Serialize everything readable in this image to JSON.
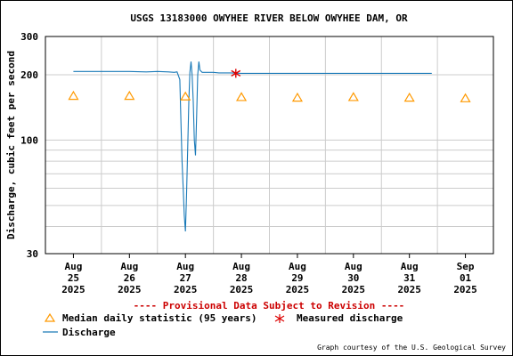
{
  "chart_data": {
    "type": "line",
    "title": "USGS 13183000 OWYHEE RIVER BELOW OWYHEE DAM, OR",
    "ylabel": "Discharge, cubic feet per second",
    "xlabel": "",
    "y_scale": "log",
    "ylim": [
      30,
      300
    ],
    "y_tick_labels": [
      "300",
      "200",
      "100",
      "30"
    ],
    "y_ticks": [
      300,
      200,
      100,
      30
    ],
    "x_tick_labels": [
      {
        "month": "Aug",
        "day": "25",
        "year": "2025"
      },
      {
        "month": "Aug",
        "day": "26",
        "year": "2025"
      },
      {
        "month": "Aug",
        "day": "27",
        "year": "2025"
      },
      {
        "month": "Aug",
        "day": "28",
        "year": "2025"
      },
      {
        "month": "Aug",
        "day": "29",
        "year": "2025"
      },
      {
        "month": "Aug",
        "day": "30",
        "year": "2025"
      },
      {
        "month": "Aug",
        "day": "31",
        "year": "2025"
      },
      {
        "month": "Sep",
        "day": "01",
        "year": "2025"
      }
    ],
    "series": [
      {
        "name": "Discharge",
        "color": "#1a7ab8",
        "points": [
          [
            0.0,
            207
          ],
          [
            1.0,
            207
          ],
          [
            1.3,
            206
          ],
          [
            1.5,
            207
          ],
          [
            1.7,
            206
          ],
          [
            1.8,
            205
          ],
          [
            1.85,
            206
          ],
          [
            1.9,
            190
          ],
          [
            1.92,
            120
          ],
          [
            1.94,
            80
          ],
          [
            1.96,
            60
          ],
          [
            1.98,
            45
          ],
          [
            2.0,
            38
          ],
          [
            2.02,
            55
          ],
          [
            2.04,
            90
          ],
          [
            2.06,
            150
          ],
          [
            2.08,
            205
          ],
          [
            2.1,
            230
          ],
          [
            2.12,
            200
          ],
          [
            2.14,
            150
          ],
          [
            2.16,
            100
          ],
          [
            2.18,
            85
          ],
          [
            2.2,
            130
          ],
          [
            2.22,
            200
          ],
          [
            2.24,
            230
          ],
          [
            2.26,
            210
          ],
          [
            2.3,
            205
          ],
          [
            2.5,
            205
          ],
          [
            2.6,
            204
          ],
          [
            2.8,
            204
          ],
          [
            3.0,
            203
          ],
          [
            3.2,
            203
          ],
          [
            4.0,
            203
          ],
          [
            5.0,
            203
          ],
          [
            6.0,
            203
          ],
          [
            6.4,
            203
          ]
        ]
      },
      {
        "name": "Median daily statistic (95 years)",
        "color": "#ff9900",
        "marker": "triangle",
        "points": [
          [
            0.0,
            160
          ],
          [
            1.0,
            160
          ],
          [
            2.0,
            159
          ],
          [
            3.0,
            158
          ],
          [
            4.0,
            157
          ],
          [
            5.0,
            158
          ],
          [
            6.0,
            157
          ],
          [
            7.0,
            156
          ]
        ]
      },
      {
        "name": "Measured discharge",
        "color": "#dd0000",
        "marker": "star",
        "points": [
          [
            2.9,
            203
          ]
        ]
      }
    ],
    "provisional_note": "---- Provisional Data Subject to Revision ----",
    "legend": [
      {
        "label": "Median daily statistic (95 years)",
        "symbol": "triangle"
      },
      {
        "label": "Measured discharge",
        "symbol": "star"
      },
      {
        "label": "Discharge",
        "symbol": "line"
      }
    ],
    "credit": "Graph courtesy of the U.S. Geological Survey",
    "colors": {
      "grid": "#cccccc",
      "axis": "#000000",
      "note": "#cc0000"
    }
  }
}
